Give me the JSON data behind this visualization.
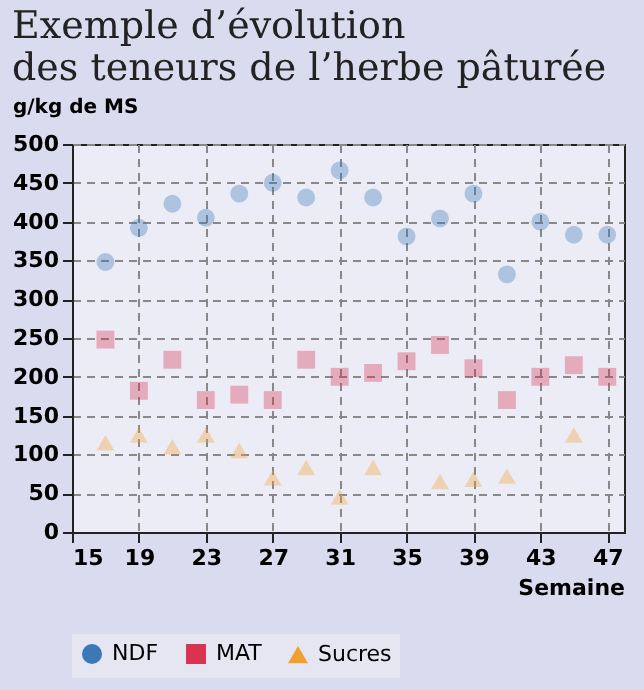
{
  "chart_data": {
    "type": "scatter",
    "title": [
      "Exemple d’évolution",
      "des teneurs de l’herbe pâturée"
    ],
    "ylabel": "g/kg de MS",
    "xlabel": "Semaine",
    "x": [
      17,
      19,
      21,
      23,
      25,
      27,
      29,
      31,
      33,
      35,
      37,
      39,
      41,
      43,
      45,
      47
    ],
    "series": [
      {
        "name": "NDF",
        "color": "#3a78b8",
        "marker": "circle",
        "values": [
          348,
          392,
          423,
          405,
          436,
          450,
          431,
          466,
          431,
          381,
          404,
          436,
          332,
          400,
          383,
          383
        ]
      },
      {
        "name": "MAT",
        "color": "#d8344f",
        "marker": "square",
        "values": [
          248,
          182,
          222,
          170,
          177,
          170,
          222,
          200,
          205,
          220,
          241,
          211,
          170,
          200,
          215,
          200
        ]
      },
      {
        "name": "Sucres",
        "color": "#f0a030",
        "marker": "triangle",
        "values": [
          115,
          125,
          110,
          125,
          105,
          70,
          83,
          45,
          83,
          null,
          65,
          68,
          72,
          null,
          125,
          null
        ]
      }
    ],
    "xlim": [
      15,
      48
    ],
    "xticks": [
      15,
      19,
      23,
      27,
      31,
      35,
      39,
      43,
      47
    ],
    "ylim": [
      0,
      500
    ],
    "yticks": [
      0,
      50,
      100,
      150,
      200,
      250,
      300,
      350,
      400,
      450,
      500
    ],
    "grid": true,
    "legend": "bottom"
  }
}
